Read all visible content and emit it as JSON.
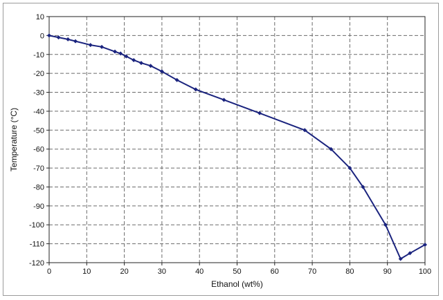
{
  "chart_data": {
    "type": "line",
    "title": "",
    "xlabel": "Ethanol (wt%)",
    "ylabel": "Temperature (°C)",
    "xlim": [
      0,
      100
    ],
    "ylim": [
      -120,
      10
    ],
    "x_ticks": [
      0,
      10,
      20,
      30,
      40,
      50,
      60,
      70,
      80,
      90,
      100
    ],
    "y_ticks": [
      10,
      0,
      -10,
      -20,
      -30,
      -40,
      -50,
      -60,
      -70,
      -80,
      -90,
      -100,
      -110,
      -120
    ],
    "grid": true,
    "grid_style": "dashed",
    "line_color": "#1a237e",
    "grid_color": "#6a6a6a",
    "series": [
      {
        "x": [
          0,
          2.5,
          5,
          7,
          11,
          14,
          17.5,
          19,
          20.5,
          22.5,
          24.5,
          27,
          30,
          34,
          39,
          46.5,
          56,
          68,
          75,
          80,
          83.5,
          89.5,
          93.5,
          96,
          100
        ],
        "y": [
          0,
          -1,
          -2,
          -3,
          -5,
          -6,
          -8.5,
          -9.5,
          -11,
          -13,
          -14.5,
          -16,
          -19,
          -23.5,
          -28.5,
          -34,
          -41,
          -50,
          -60,
          -70,
          -80,
          -100,
          -118,
          -115,
          -110.5
        ]
      }
    ]
  }
}
